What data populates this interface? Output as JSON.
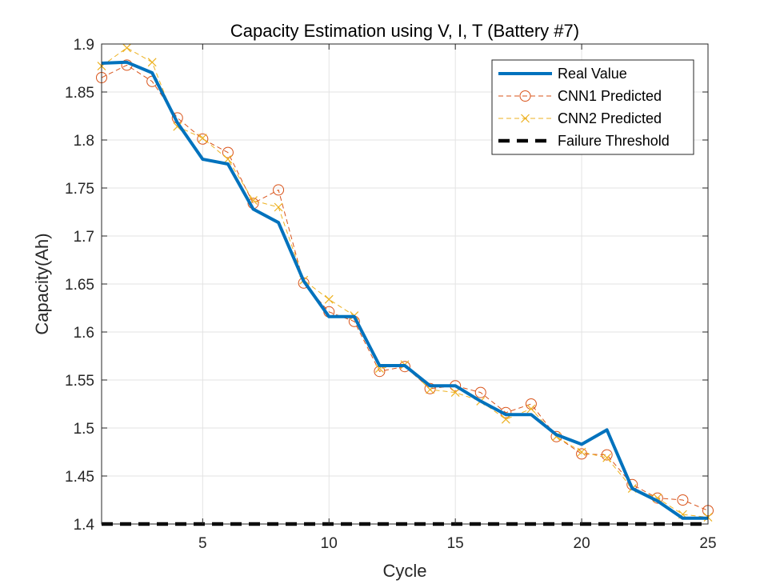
{
  "chart_data": {
    "type": "line",
    "title": "Capacity Estimation using V, I, T (Battery #7)",
    "xlabel": "Cycle",
    "ylabel": "Capacity(Ah)",
    "xlim": [
      1,
      25
    ],
    "ylim": [
      1.4,
      1.9
    ],
    "xticks": [
      5,
      10,
      15,
      20,
      25
    ],
    "yticks": [
      1.4,
      1.45,
      1.5,
      1.55,
      1.6,
      1.65,
      1.7,
      1.75,
      1.8,
      1.85,
      1.9
    ],
    "grid": true,
    "legend_position": "top-right",
    "x": [
      1,
      2,
      3,
      4,
      5,
      6,
      7,
      8,
      9,
      10,
      11,
      12,
      13,
      14,
      15,
      16,
      17,
      18,
      19,
      20,
      21,
      22,
      23,
      24,
      25
    ],
    "series": [
      {
        "name": "Real Value",
        "style": "solid-thick",
        "color": "#0072BD",
        "values": [
          1.88,
          1.881,
          1.87,
          1.818,
          1.78,
          1.775,
          1.728,
          1.714,
          1.653,
          1.616,
          1.616,
          1.565,
          1.565,
          1.544,
          1.544,
          1.528,
          1.514,
          1.514,
          1.493,
          1.483,
          1.498,
          1.437,
          1.424,
          1.406,
          1.406
        ]
      },
      {
        "name": "CNN1 Predicted",
        "style": "dashed-circle",
        "color": "#D95319",
        "values": [
          1.865,
          1.878,
          1.861,
          1.823,
          1.801,
          1.787,
          1.734,
          1.748,
          1.651,
          1.621,
          1.611,
          1.559,
          1.564,
          1.541,
          1.544,
          1.537,
          1.516,
          1.525,
          1.491,
          1.473,
          1.472,
          1.441,
          1.427,
          1.425,
          1.414
        ]
      },
      {
        "name": "CNN2 Predicted",
        "style": "dashed-x",
        "color": "#EDB120",
        "values": [
          1.877,
          1.896,
          1.881,
          1.814,
          1.802,
          1.78,
          1.737,
          1.73,
          1.654,
          1.634,
          1.617,
          1.562,
          1.566,
          1.54,
          1.537,
          1.528,
          1.509,
          1.52,
          1.491,
          1.475,
          1.469,
          1.437,
          1.427,
          1.41,
          1.407
        ]
      },
      {
        "name": "Failure Threshold",
        "style": "dashed-thick",
        "color": "#000000",
        "values": [
          1.4,
          1.4,
          1.4,
          1.4,
          1.4,
          1.4,
          1.4,
          1.4,
          1.4,
          1.4,
          1.4,
          1.4,
          1.4,
          1.4,
          1.4,
          1.4,
          1.4,
          1.4,
          1.4,
          1.4,
          1.4,
          1.4,
          1.4,
          1.4,
          1.4
        ]
      }
    ]
  }
}
